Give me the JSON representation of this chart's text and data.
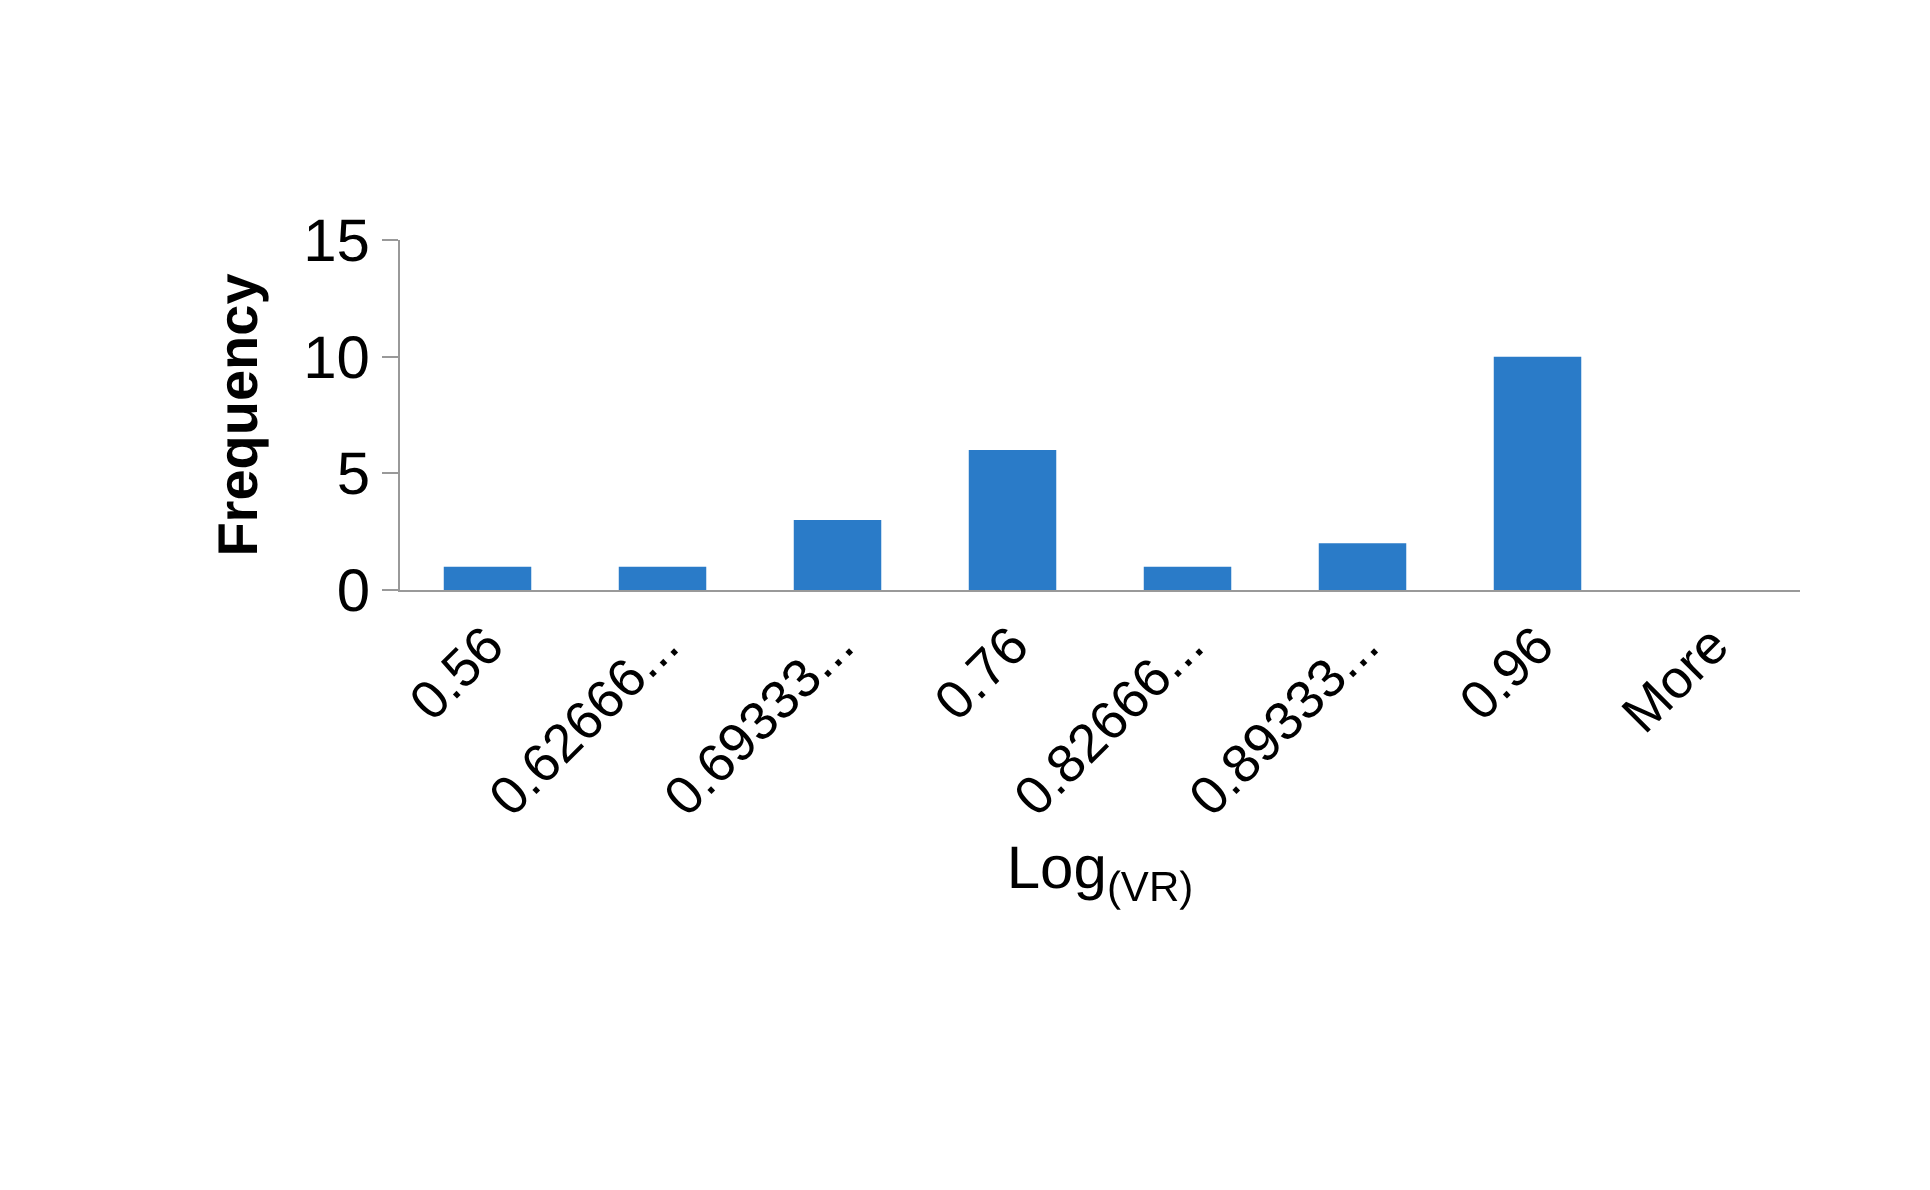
{
  "chart_data": {
    "type": "bar",
    "xlabel": "Log$_{(VR)}$",
    "ylabel": "Frequency",
    "categories": [
      "0.56",
      "0.62666...",
      "0.69333...",
      "0.76",
      "0.82666...",
      "0.89333...",
      "0.96",
      "More"
    ],
    "values": [
      1,
      1,
      3,
      6,
      1,
      2,
      10,
      0
    ],
    "color": "#2a7bc8",
    "ylim": [
      0,
      15
    ],
    "yticks": [
      0,
      5,
      10,
      15
    ],
    "grid": false,
    "legend": false
  }
}
